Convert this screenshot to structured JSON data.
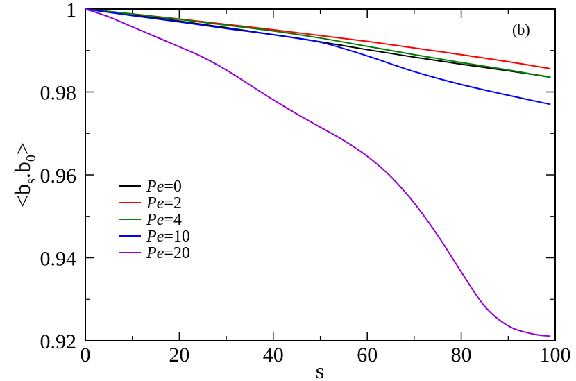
{
  "chart_data": {
    "type": "line",
    "panel_label": "(b)",
    "xlabel": "s",
    "ylabel": {
      "base": "<b",
      "sub1": "s",
      "mid": ".b",
      "sub2": "0",
      "end": ">"
    },
    "xlim": [
      0,
      100
    ],
    "ylim": [
      0.92,
      1.0
    ],
    "xticks": [
      0,
      20,
      40,
      60,
      80,
      100
    ],
    "yticks": [
      0.92,
      0.94,
      0.96,
      0.98,
      1.0
    ],
    "xtick_labels": [
      "0",
      "20",
      "40",
      "60",
      "80",
      "100"
    ],
    "ytick_labels": [
      "0.92",
      "0.94",
      "0.96",
      "0.98",
      "1"
    ],
    "minor_xticks": [
      10,
      30,
      50,
      70,
      90
    ],
    "minor_yticks": [
      0.93,
      0.95,
      0.97,
      0.99
    ],
    "grid": false,
    "legend_position": "center-left",
    "series": [
      {
        "legend_prefix": "Pe",
        "legend_suffix": "=0",
        "color": "#000000",
        "x": [
          0,
          10,
          20,
          30,
          40,
          50,
          60,
          70,
          80,
          90,
          99
        ],
        "y": [
          1.0,
          0.9986,
          0.9971,
          0.9955,
          0.9938,
          0.9921,
          0.9902,
          0.9884,
          0.9867,
          0.9851,
          0.9836
        ]
      },
      {
        "legend_prefix": "Pe",
        "legend_suffix": "=2",
        "color": "#ff0000",
        "x": [
          0,
          10,
          20,
          30,
          40,
          50,
          60,
          70,
          80,
          90,
          99
        ],
        "y": [
          1.0,
          0.9988,
          0.9976,
          0.9963,
          0.995,
          0.9936,
          0.9922,
          0.9906,
          0.989,
          0.9873,
          0.9856
        ]
      },
      {
        "legend_prefix": "Pe",
        "legend_suffix": "=4",
        "color": "#008000",
        "x": [
          0,
          10,
          20,
          30,
          40,
          50,
          60,
          70,
          80,
          90,
          99
        ],
        "y": [
          1.0,
          0.9988,
          0.9975,
          0.9961,
          0.9947,
          0.993,
          0.991,
          0.989,
          0.9871,
          0.9853,
          0.9835
        ]
      },
      {
        "legend_prefix": "Pe",
        "legend_suffix": "=10",
        "color": "#0000ff",
        "x": [
          0,
          10,
          20,
          30,
          40,
          50,
          60,
          70,
          80,
          90,
          99
        ],
        "y": [
          1.0,
          0.9984,
          0.9969,
          0.9953,
          0.9938,
          0.992,
          0.9887,
          0.9849,
          0.9818,
          0.9792,
          0.977
        ]
      },
      {
        "legend_prefix": "Pe",
        "legend_suffix": "=20",
        "color": "#9400d3",
        "x": [
          0,
          5,
          10,
          15,
          20,
          25,
          30,
          35,
          40,
          45,
          50,
          55,
          60,
          65,
          70,
          75,
          80,
          85,
          90,
          95,
          99
        ],
        "y": [
          1.0,
          0.9981,
          0.9957,
          0.9933,
          0.9909,
          0.9884,
          0.9853,
          0.9817,
          0.9781,
          0.9747,
          0.9715,
          0.9683,
          0.9645,
          0.9596,
          0.9532,
          0.9454,
          0.9366,
          0.9283,
          0.9236,
          0.9217,
          0.9211
        ]
      }
    ]
  }
}
